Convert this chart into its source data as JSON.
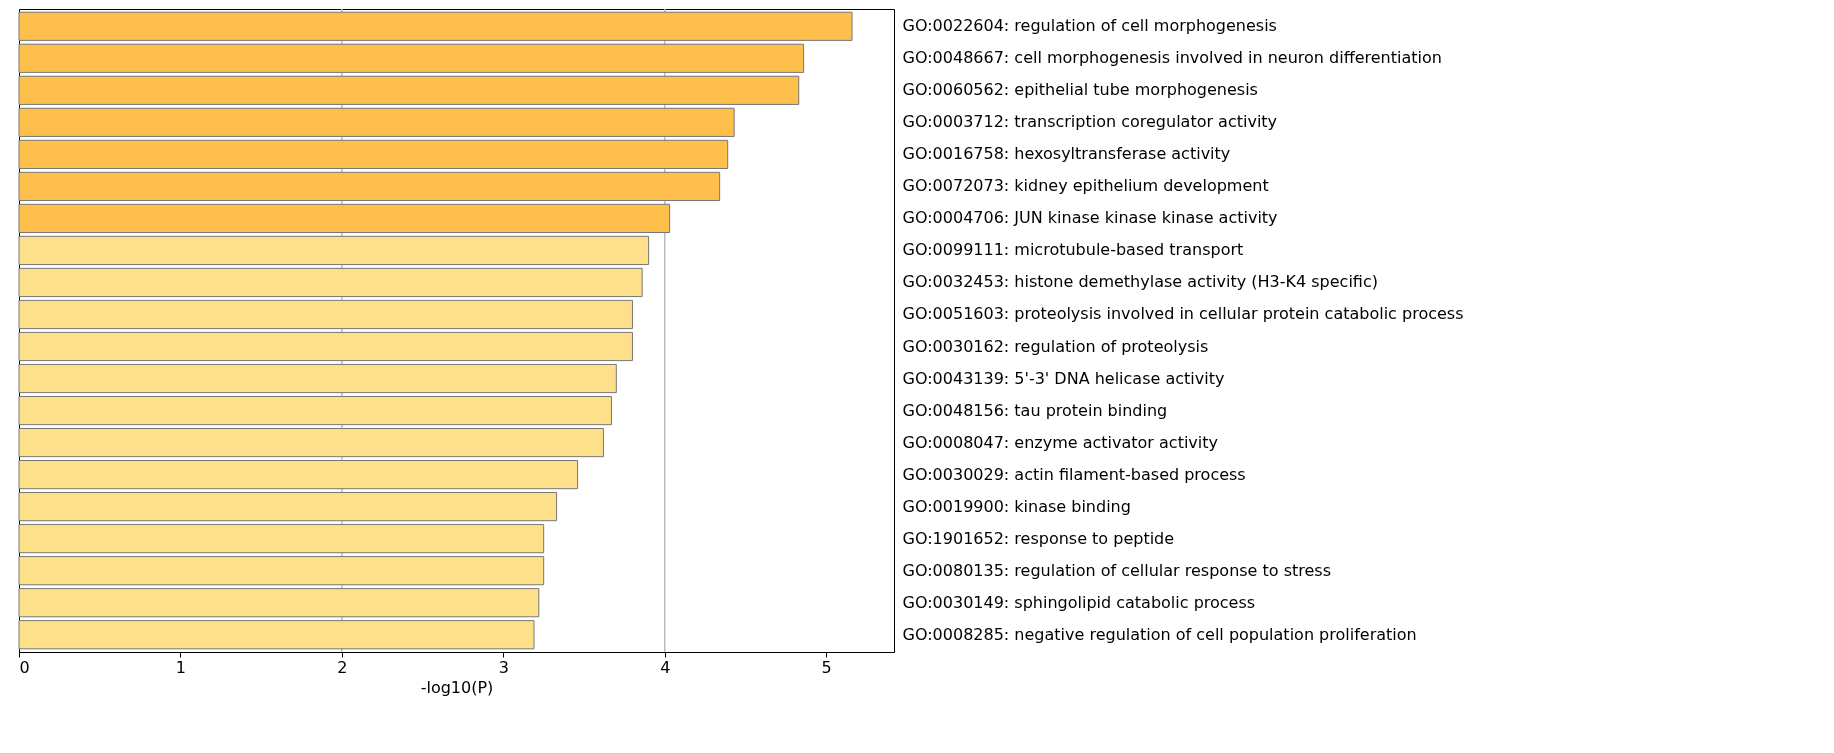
{
  "chart_data": {
    "type": "bar",
    "orientation": "horizontal",
    "xlabel": "-log10(P)",
    "categories": [
      "GO:0022604: regulation of cell morphogenesis",
      "GO:0048667: cell morphogenesis involved in neuron differentiation",
      "GO:0060562: epithelial tube morphogenesis",
      "GO:0003712: transcription coregulator activity",
      "GO:0016758: hexosyltransferase activity",
      "GO:0072073: kidney epithelium development",
      "GO:0004706: JUN kinase kinase kinase activity",
      "GO:0099111: microtubule-based transport",
      "GO:0032453: histone demethylase activity (H3-K4 specific)",
      "GO:0051603: proteolysis involved in cellular protein catabolic process",
      "GO:0030162: regulation of proteolysis",
      "GO:0043139: 5'-3' DNA helicase activity",
      "GO:0048156: tau protein binding",
      "GO:0008047: enzyme activator activity",
      "GO:0030029: actin filament-based process",
      "GO:0019900: kinase binding",
      "GO:1901652: response to peptide",
      "GO:0080135: regulation of cellular response to stress",
      "GO:0030149: sphingolipid catabolic process",
      "GO:0008285: negative regulation of cell population proliferation"
    ],
    "values": [
      5.16,
      4.86,
      4.83,
      4.43,
      4.39,
      4.34,
      4.03,
      3.9,
      3.86,
      3.8,
      3.8,
      3.7,
      3.67,
      3.62,
      3.46,
      3.33,
      3.25,
      3.25,
      3.22,
      3.19
    ],
    "colors": [
      "#ffbf4d",
      "#ffbf4d",
      "#ffbf4d",
      "#ffbf4d",
      "#ffbf4d",
      "#ffbf4d",
      "#ffbf4d",
      "#ffe08a",
      "#ffe08a",
      "#ffe08a",
      "#ffe08a",
      "#ffe08a",
      "#ffe08a",
      "#ffe08a",
      "#ffe08a",
      "#ffe08a",
      "#ffe08a",
      "#ffe08a",
      "#ffe08a",
      "#ffe08a"
    ],
    "xlim": [
      0,
      5.42
    ],
    "xticks": [
      0,
      1,
      2,
      3,
      4,
      5
    ],
    "ref_lines": [
      {
        "axis": "x",
        "value": 2,
        "color": "#bbbbbb"
      },
      {
        "axis": "x",
        "value": 4,
        "color": "#bbbbbb"
      }
    ],
    "grid": false,
    "legend": false
  }
}
